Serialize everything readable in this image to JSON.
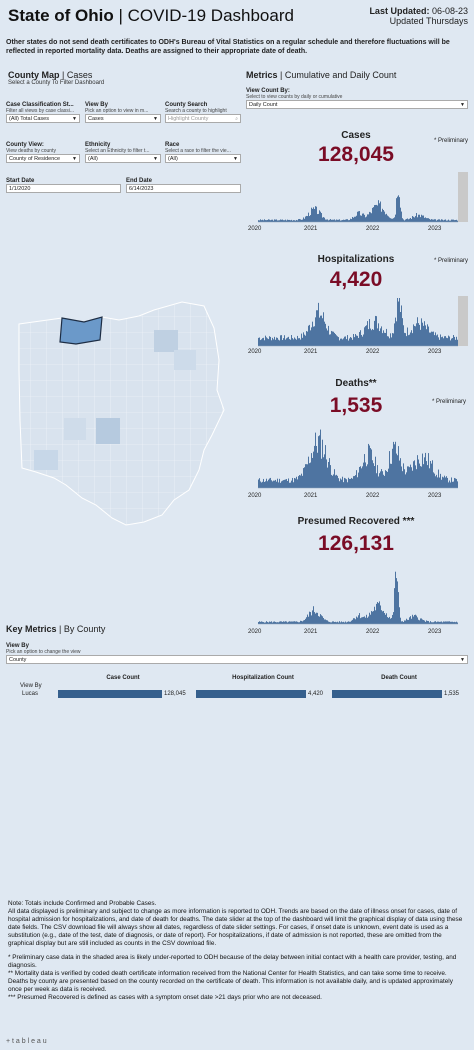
{
  "header": {
    "title_bold": "State of Ohio",
    "title_sep": " | ",
    "title_rest": "COVID-19 Dashboard",
    "updated_label": "Last Updated:",
    "updated_date": "06-08-23",
    "updated_freq": "Updated Thursdays"
  },
  "intro": "Other states do not send death certificates to ODH's Bureau of Vital Statistics on a regular schedule and therefore fluctuations will be reflected in reported mortality data. Deaths are assigned to their appropriate date of death.",
  "county_map": {
    "heading_bold": "County Map",
    "heading_rest": " | Cases",
    "sub": "Select a County To Filter Dashboard"
  },
  "filters": {
    "case_class": {
      "label": "Case Classification St...",
      "sub": "Filter all views by case classi...",
      "value": "(All) Total Cases"
    },
    "view_by": {
      "label": "View By",
      "sub": "Pick an option to view in m...",
      "value": "Cases"
    },
    "county_search": {
      "label": "County Search",
      "sub": "Search a county to highlight",
      "placeholder": "Highlight County"
    },
    "county_view": {
      "label": "County View:",
      "sub": "View deaths by county",
      "value": "County of Residence"
    },
    "ethnicity": {
      "label": "Ethnicity",
      "sub": "Select an Ethnicity to filter t...",
      "value": "(All)"
    },
    "race": {
      "label": "Race",
      "sub": "Select a race to filter the vie...",
      "value": "(All)"
    },
    "start_date": {
      "label": "Start Date",
      "value": "1/1/2020"
    },
    "end_date": {
      "label": "End Date",
      "value": "6/14/2023"
    }
  },
  "metrics": {
    "heading_bold": "Metrics",
    "heading_rest": " | Cumulative and Daily Count",
    "view_count_label": "View Count By:",
    "view_count_sub": "Select to view counts by daily or cumulative",
    "view_count_value": "Daily Count",
    "prelim_label": "* Preliminary",
    "axis_years": [
      "2020",
      "2021",
      "2022",
      "2023"
    ],
    "cases": {
      "label": "Cases",
      "value": "128,045"
    },
    "hosp": {
      "label": "Hospitalizations",
      "value": "4,420"
    },
    "deaths": {
      "label": "Deaths**",
      "value": "1,535"
    },
    "recovered": {
      "label": "Presumed Recovered ***",
      "value": "126,131"
    }
  },
  "key_metrics": {
    "heading_bold": "Key Metrics",
    "heading_rest": " | By County",
    "view_by_label": "View By",
    "view_by_sub": "Pick an option to change the view",
    "view_by_value": "County",
    "row_header": "View By",
    "col_case": "Case Count",
    "col_hosp": "Hospitalization Count",
    "col_death": "Death Count",
    "rows": [
      {
        "county": "Lucas",
        "cases": "128,045",
        "hosp": "4,420",
        "deaths": "1,535"
      }
    ]
  },
  "notes": [
    "Note: Totals include Confirmed and Probable Cases.",
    "All data displayed is preliminary and subject to change as more information is reported to ODH. Trends are based on the date of illness onset for cases, date of hospital admission for hospitalizations, and date of death for deaths. The date slider at the top of the dashboard will limit the graphical display of data using these date fields. The CSV download file will always show all dates, regardless of date slider settings. For cases, if onset date is unknown, event date is used as a substitution (e.g., date of the test, date of diagnosis, or date of report). For hospitalizations, if date of admission is not reported, these are omitted from the graphical display but are still included as counts in the CSV download file.",
    "* Preliminary case data in the shaded area is likely under-reported to ODH because of the delay between initial contact with a health care provider, testing, and diagnosis.",
    "** Mortality data is verified by coded death certificate information received from the National Center for Health Statistics, and can take some time to receive. Deaths by county are presented based on the county recorded on the certificate of death. This information is not available daily, and is updated approximately once per week as data is received.",
    "*** Presumed Recovered is defined as cases with a symptom onset date >21 days prior who are not deceased."
  ],
  "footer": "+ t a b l e a u",
  "colors": {
    "bar": "#3f6898",
    "value": "#7a0c26",
    "map_base": "#dbe4ee",
    "map_selected": "#5b8dc0"
  }
}
